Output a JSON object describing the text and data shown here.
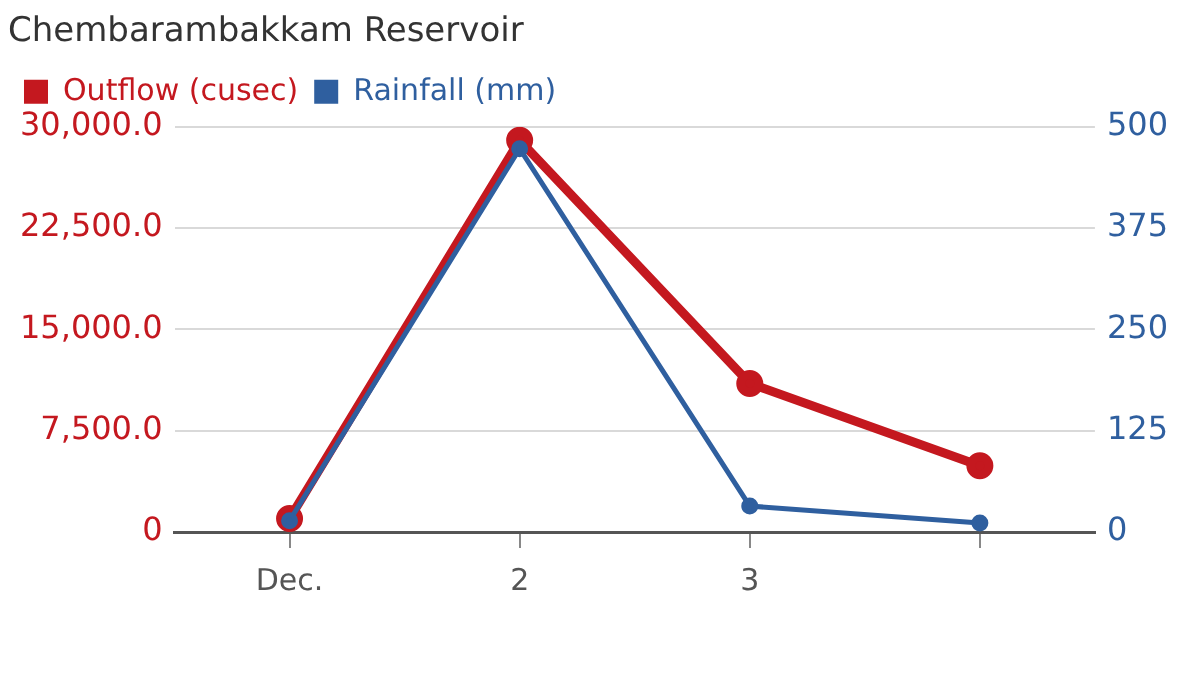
{
  "chart_data": {
    "type": "line",
    "title": "Chembarambakkam Reservoir",
    "categories": [
      "Dec.",
      "2",
      "3",
      null
    ],
    "series": [
      {
        "name": "Outflow (cusec)",
        "color": "#c4181f",
        "values": [
          1000,
          29000,
          11000,
          4900
        ]
      },
      {
        "name": "Rainfall (mm)",
        "color": "#2f5f9f",
        "values": [
          14,
          473,
          32,
          11
        ],
        "axis": "y2"
      }
    ],
    "ylim": [
      0,
      30000
    ],
    "yticks": [
      {
        "value": 0,
        "label": "0"
      },
      {
        "value": 7500,
        "label": "7,500.0"
      },
      {
        "value": 15000,
        "label": "15,000.0"
      },
      {
        "value": 22500,
        "label": "22,500.0"
      },
      {
        "value": 30000,
        "label": "30,000.0"
      }
    ],
    "y2lim": [
      0,
      500
    ],
    "y2ticks": [
      0,
      125,
      250,
      375,
      500
    ],
    "grid": "y",
    "legend": "top left",
    "marker": "circle",
    "line_style": "solid"
  }
}
